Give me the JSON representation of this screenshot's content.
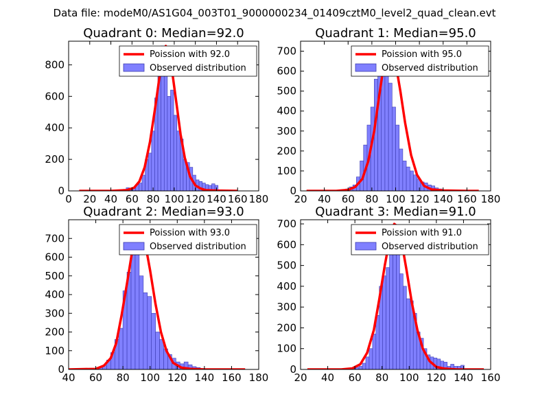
{
  "figure_title": "Data file: modeM0/AS1G04_003T01_9000000234_01409cztM0_level2_quad_clean.evt",
  "colors": {
    "bar_fill": "#8080ff",
    "bar_edge": "#3a3ab0",
    "poisson_line": "#ff0000",
    "axes": "#000000",
    "background": "#ffffff"
  },
  "chart_data": [
    {
      "type": "bar",
      "title": "Quadrant 0: Median=92.0",
      "legend": [
        "Poission with 92.0",
        "Observed distribution"
      ],
      "legend_position": "top-right",
      "xlim": [
        0,
        180
      ],
      "ylim": [
        0,
        950
      ],
      "xticks": [
        0,
        20,
        40,
        60,
        80,
        100,
        120,
        140,
        160,
        180
      ],
      "xtick_labels": [
        "0",
        "20",
        "40",
        "60",
        "80",
        "100",
        "120",
        "140",
        "160",
        "180"
      ],
      "yticks": [
        0,
        200,
        400,
        600,
        800
      ],
      "ytick_labels": [
        "0",
        "200",
        "400",
        "600",
        "800"
      ],
      "bin_start": 51.5,
      "bin_width": 3.0,
      "values": [
        10,
        20,
        5,
        20,
        40,
        50,
        100,
        200,
        240,
        380,
        590,
        820,
        920,
        830,
        600,
        640,
        480,
        380,
        330,
        200,
        180,
        150,
        100,
        70,
        60,
        50,
        40,
        35,
        45,
        35
      ],
      "line_x": [
        10,
        40,
        55,
        62,
        67,
        72,
        77,
        82,
        86,
        89,
        92,
        95,
        98,
        102,
        106,
        110,
        115,
        120,
        125,
        130,
        140,
        160
      ],
      "line_y": [
        0,
        0,
        5,
        20,
        60,
        150,
        310,
        530,
        720,
        860,
        920,
        870,
        760,
        560,
        360,
        210,
        90,
        35,
        15,
        5,
        2,
        0
      ]
    },
    {
      "type": "bar",
      "title": "Quadrant 1: Median=95.0",
      "legend": [
        "Poission with 95.0",
        "Observed distribution"
      ],
      "legend_position": "top-right",
      "xlim": [
        20,
        180
      ],
      "ylim": [
        0,
        750
      ],
      "xticks": [
        20,
        40,
        60,
        80,
        100,
        120,
        140,
        160,
        180
      ],
      "xtick_labels": [
        "20",
        "40",
        "60",
        "80",
        "100",
        "120",
        "140",
        "160",
        "180"
      ],
      "yticks": [
        0,
        100,
        200,
        300,
        400,
        500,
        600,
        700
      ],
      "ytick_labels": [
        "0",
        "100",
        "200",
        "300",
        "400",
        "500",
        "600",
        "700"
      ],
      "bin_start": 52.0,
      "bin_width": 3.0,
      "values": [
        3,
        5,
        10,
        20,
        30,
        70,
        150,
        230,
        330,
        420,
        560,
        620,
        720,
        620,
        540,
        420,
        330,
        210,
        150,
        120,
        100,
        80,
        60,
        45,
        40,
        30,
        25,
        15,
        10
      ],
      "line_x": [
        25,
        50,
        60,
        66,
        72,
        77,
        82,
        86,
        90,
        93,
        96,
        100,
        104,
        108,
        113,
        118,
        124,
        130,
        140,
        160,
        170
      ],
      "line_y": [
        0,
        0,
        5,
        20,
        60,
        150,
        300,
        470,
        630,
        700,
        710,
        640,
        500,
        340,
        180,
        80,
        25,
        8,
        2,
        0,
        0
      ]
    },
    {
      "type": "bar",
      "title": "Quadrant 2: Median=93.0",
      "legend": [
        "Poission with 93.0",
        "Observed distribution"
      ],
      "legend_position": "top-right",
      "xlim": [
        40,
        180
      ],
      "ylim": [
        0,
        800
      ],
      "xticks": [
        40,
        60,
        80,
        100,
        120,
        140,
        160,
        180
      ],
      "xtick_labels": [
        "40",
        "60",
        "80",
        "100",
        "120",
        "140",
        "160",
        "180"
      ],
      "yticks": [
        0,
        100,
        200,
        300,
        400,
        500,
        600,
        700
      ],
      "ytick_labels": [
        "0",
        "100",
        "200",
        "300",
        "400",
        "500",
        "600",
        "700"
      ],
      "bin_start": 59.0,
      "bin_width": 3.0,
      "values": [
        5,
        10,
        20,
        50,
        90,
        160,
        220,
        420,
        520,
        620,
        700,
        500,
        410,
        390,
        300,
        200,
        160,
        110,
        80,
        60,
        40,
        30,
        40,
        25,
        15,
        10,
        5
      ],
      "line_x": [
        40,
        60,
        66,
        71,
        75,
        79,
        83,
        87,
        90,
        93,
        96,
        100,
        104,
        108,
        112,
        117,
        123,
        130,
        140,
        170
      ],
      "line_y": [
        0,
        3,
        20,
        60,
        140,
        290,
        460,
        640,
        730,
        750,
        690,
        530,
        350,
        200,
        100,
        35,
        10,
        3,
        0,
        0
      ]
    },
    {
      "type": "bar",
      "title": "Quadrant 3: Median=91.0",
      "legend": [
        "Poission with 91.0",
        "Observed distribution"
      ],
      "legend_position": "top-right",
      "xlim": [
        20,
        160
      ],
      "ylim": [
        0,
        720
      ],
      "xticks": [
        20,
        40,
        60,
        80,
        100,
        120,
        140,
        160
      ],
      "xtick_labels": [
        "20",
        "40",
        "60",
        "80",
        "100",
        "120",
        "140",
        "160"
      ],
      "yticks": [
        0,
        100,
        200,
        300,
        400,
        500,
        600,
        700
      ],
      "ytick_labels": [
        "0",
        "100",
        "200",
        "300",
        "400",
        "500",
        "600",
        "700"
      ],
      "bin_start": 58.0,
      "bin_width": 2.5,
      "values": [
        5,
        10,
        15,
        30,
        60,
        100,
        170,
        260,
        400,
        450,
        490,
        570,
        650,
        680,
        460,
        400,
        340,
        330,
        270,
        180,
        150,
        100,
        70,
        60,
        55,
        50,
        40,
        35,
        15,
        25,
        15,
        15,
        20
      ],
      "line_x": [
        25,
        50,
        58,
        64,
        69,
        74,
        78,
        82,
        86,
        89,
        91,
        94,
        98,
        102,
        106,
        110,
        115,
        120,
        126,
        135,
        155
      ],
      "line_y": [
        0,
        0,
        5,
        25,
        80,
        190,
        340,
        500,
        640,
        700,
        690,
        630,
        480,
        320,
        190,
        100,
        40,
        12,
        4,
        0,
        0
      ]
    }
  ]
}
